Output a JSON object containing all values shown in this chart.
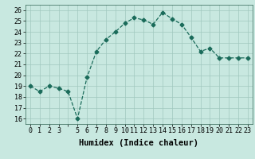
{
  "x": [
    0,
    1,
    2,
    3,
    4,
    5,
    6,
    7,
    8,
    9,
    10,
    11,
    12,
    13,
    14,
    15,
    16,
    17,
    18,
    19,
    20,
    21,
    22,
    23
  ],
  "y": [
    19.0,
    18.5,
    19.0,
    18.8,
    18.5,
    16.0,
    19.8,
    22.2,
    23.3,
    24.0,
    24.8,
    25.3,
    25.1,
    24.7,
    25.8,
    25.2,
    24.7,
    23.5,
    22.2,
    22.5,
    21.6,
    21.6,
    21.6,
    21.6
  ],
  "xlabel": "Humidex (Indice chaleur)",
  "ylabel": "",
  "xlim": [
    -0.5,
    23.5
  ],
  "ylim": [
    15.5,
    26.5
  ],
  "yticks": [
    16,
    17,
    18,
    19,
    20,
    21,
    22,
    23,
    24,
    25,
    26
  ],
  "xticks": [
    0,
    1,
    2,
    3,
    4,
    5,
    6,
    7,
    8,
    9,
    10,
    11,
    12,
    13,
    14,
    15,
    16,
    17,
    18,
    19,
    20,
    21,
    22,
    23
  ],
  "xtick_labels": [
    "0",
    "1",
    "2",
    "3",
    "",
    "5",
    "6",
    "7",
    "8",
    "9",
    "10",
    "11",
    "12",
    "13",
    "14",
    "15",
    "16",
    "17",
    "18",
    "19",
    "20",
    "21",
    "22",
    "23"
  ],
  "line_color": "#1a6b5a",
  "marker": "D",
  "marker_size": 2.5,
  "bg_color": "#c8e8e0",
  "grid_color": "#a0c8be",
  "title_fontsize": 6.5,
  "label_fontsize": 7.5,
  "tick_fontsize": 6.0
}
